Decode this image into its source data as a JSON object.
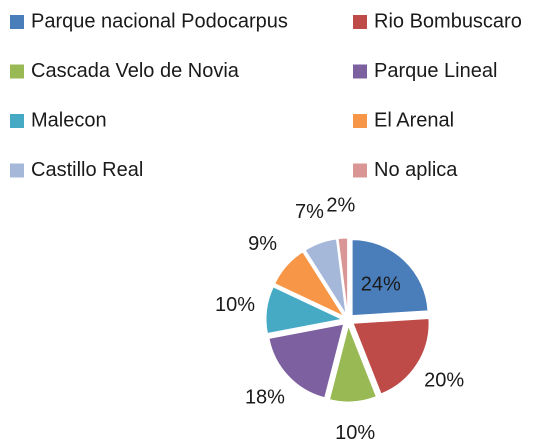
{
  "chart_data": {
    "type": "pie",
    "categories": [
      "Parque nacional Podocarpus",
      "Rio Bombuscaro",
      "Cascada Velo de Novia",
      "Parque Lineal",
      "Malecon",
      "El Arenal",
      "Castillo Real",
      "No aplica"
    ],
    "values": [
      24,
      20,
      10,
      18,
      10,
      9,
      7,
      2
    ],
    "value_labels": [
      "24%",
      "20%",
      "10%",
      "18%",
      "10%",
      "9%",
      "7%",
      "2%"
    ],
    "colors": [
      "#4a7ebb",
      "#be4b48",
      "#98b954",
      "#7d60a0",
      "#46aac5",
      "#f79646",
      "#a5b8da",
      "#d99694"
    ],
    "exploded": true,
    "legend": "top"
  }
}
